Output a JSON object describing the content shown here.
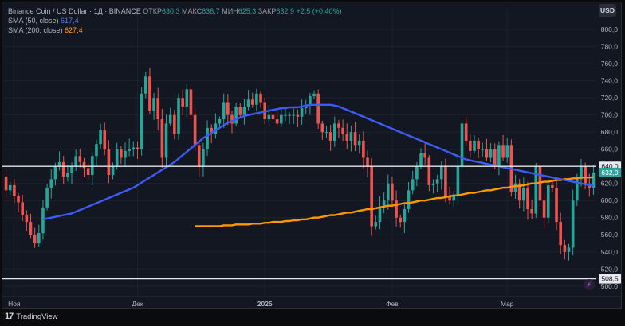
{
  "header": {
    "symbol": "Binance Coin / US Dollar",
    "interval": "1Д",
    "exchange": "BINANCE",
    "open_label": "ОТКР",
    "open": "630,3",
    "high_label": "МАКС",
    "high": "636,7",
    "low_label": "МИН",
    "low": "625,3",
    "close_label": "ЗАКР",
    "close": "632,9",
    "change": "+2,5 (+0,40%)",
    "sma50_label": "SMA (50, close)",
    "sma50_value": "617,4",
    "sma200_label": "SMA (200, close)",
    "sma200_value": "627,4",
    "currency_button": "USD"
  },
  "colors": {
    "background": "#131722",
    "up": "#26a69a",
    "down": "#ef5350",
    "sma50": "#3d5bf5",
    "sma200": "#ff9800",
    "price_tag": "#26a69a",
    "hline": "#e6e6e6"
  },
  "footer": {
    "brand": "TradingView",
    "brand_icon": "tradingview-logo-icon"
  },
  "alert_icon": "lightning-icon",
  "chart_data": {
    "type": "candlestick",
    "ylim": [
      497,
      815
    ],
    "y_ticks": [
      "800,0",
      "780,0",
      "760,0",
      "740,0",
      "720,0",
      "700,0",
      "680,0",
      "660,0",
      "640,0",
      "620,0",
      "600,0",
      "580,0",
      "560,0",
      "540,0",
      "520,0",
      "500,0"
    ],
    "y_tick_values": [
      800,
      780,
      760,
      740,
      720,
      700,
      680,
      660,
      640,
      620,
      600,
      580,
      560,
      540,
      520,
      500
    ],
    "x_labels": [
      {
        "label": "Ноя",
        "index": 2
      },
      {
        "label": "Дек",
        "index": 32
      },
      {
        "label": "2025",
        "index": 63
      },
      {
        "label": "Фев",
        "index": 94
      },
      {
        "label": "Мар",
        "index": 122
      }
    ],
    "horizontal_lines": [
      {
        "value": 640.0,
        "label": "640,0"
      },
      {
        "value": 508.5,
        "label": "508,5"
      }
    ],
    "last_price": {
      "value": 632.9,
      "label": "632,9"
    },
    "close": [
      612,
      618,
      605,
      598,
      583,
      575,
      560,
      550,
      562,
      592,
      615,
      625,
      640,
      645,
      628,
      632,
      640,
      652,
      645,
      638,
      630,
      652,
      666,
      682,
      660,
      630,
      640,
      660,
      650,
      658,
      660,
      662,
      660,
      725,
      745,
      705,
      720,
      695,
      650,
      690,
      700,
      678,
      720,
      710,
      730,
      700,
      665,
      640,
      660,
      685,
      678,
      690,
      695,
      715,
      700,
      690,
      710,
      700,
      710,
      718,
      712,
      725,
      715,
      695,
      700,
      695,
      690,
      700,
      700,
      700,
      700,
      698,
      708,
      712,
      722,
      725,
      690,
      680,
      680,
      670,
      690,
      685,
      678,
      670,
      680,
      665,
      670,
      650,
      640,
      570,
      575,
      592,
      600,
      620,
      600,
      580,
      575,
      590,
      612,
      625,
      640,
      655,
      650,
      618,
      620,
      625,
      640,
      605,
      600,
      605,
      640,
      690,
      670,
      658,
      670,
      660,
      660,
      650,
      660,
      640,
      665,
      650,
      665,
      610,
      620,
      600,
      615,
      590,
      585,
      640,
      600,
      580,
      618,
      615,
      575,
      548,
      540,
      545,
      600,
      625,
      640,
      620,
      615,
      632.9
    ],
    "open_seed": "prev_close",
    "ohlc_sample": [
      {
        "i": 0,
        "o": 630,
        "h": 632,
        "l": 605,
        "c": 612
      }
    ],
    "sma50": [
      578,
      579,
      580,
      581,
      582,
      583,
      584,
      585,
      587,
      589,
      591,
      593,
      595,
      597,
      599,
      601,
      603,
      605,
      607,
      609,
      611,
      613,
      615,
      618,
      621,
      624,
      627,
      630,
      633,
      636,
      639,
      642,
      645,
      649,
      653,
      657,
      661,
      665,
      669,
      673,
      676,
      679,
      682,
      685,
      688,
      691,
      693,
      695,
      697,
      699,
      700,
      701,
      702,
      703,
      704,
      705,
      706,
      707,
      708,
      708,
      709,
      709,
      709,
      710,
      711,
      712,
      712,
      712,
      712,
      712,
      712,
      711,
      710,
      708,
      706,
      704,
      702,
      700,
      698,
      696,
      694,
      692,
      690,
      688,
      686,
      684,
      682,
      680,
      678,
      676,
      674,
      672,
      670,
      668,
      666,
      664,
      662,
      660,
      658,
      656,
      654,
      652,
      650,
      648,
      647,
      646,
      645,
      644,
      643,
      642,
      641,
      640,
      639,
      638,
      637,
      636,
      635,
      634,
      633,
      632,
      631,
      630,
      629,
      628,
      627,
      626,
      625,
      624,
      623,
      622,
      621,
      620,
      619,
      618,
      617.4
    ],
    "sma200": [
      570,
      570,
      570,
      570,
      570,
      570,
      570,
      571,
      571,
      571,
      572,
      572,
      572,
      572,
      573,
      573,
      573,
      574,
      574,
      575,
      575,
      575,
      576,
      576,
      577,
      577,
      578,
      578,
      579,
      580,
      580,
      581,
      582,
      583,
      583,
      584,
      585,
      586,
      586,
      587,
      588,
      589,
      590,
      590,
      591,
      592,
      593,
      594,
      594,
      595,
      596,
      597,
      597,
      598,
      599,
      600,
      600,
      601,
      602,
      603,
      603,
      604,
      605,
      606,
      606,
      607,
      608,
      609,
      609,
      610,
      611,
      612,
      612,
      613,
      614,
      615,
      615,
      616,
      617,
      617,
      618,
      619,
      620,
      620,
      621,
      622,
      622,
      623,
      624,
      624,
      625,
      625,
      626,
      626,
      627,
      627,
      627,
      627.4
    ]
  }
}
